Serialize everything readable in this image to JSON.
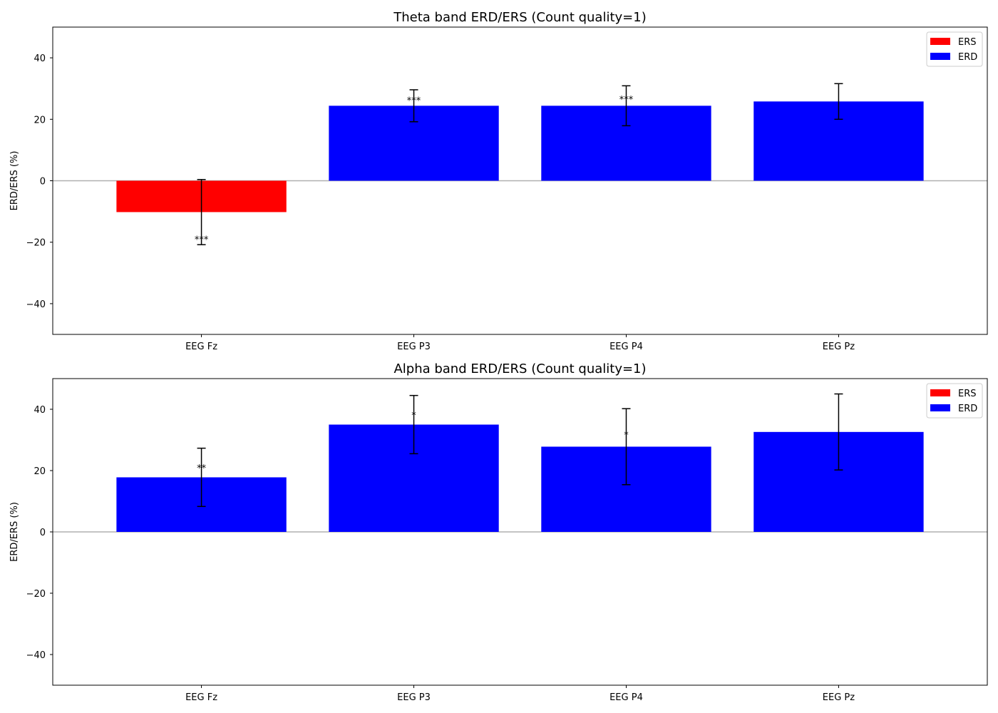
{
  "chart_data": [
    {
      "type": "bar",
      "title": "Theta band ERD/ERS (Count quality=1)",
      "xlabel": "",
      "ylabel": "ERD/ERS (%)",
      "ylim": [
        -50,
        50
      ],
      "yticks": [
        -40,
        -20,
        0,
        20,
        40
      ],
      "categories": [
        "EEG Fz",
        "EEG P3",
        "EEG P4",
        "EEG Pz"
      ],
      "values": [
        -10.2,
        24.4,
        24.4,
        25.8
      ],
      "errors": [
        10.6,
        5.2,
        6.5,
        5.8
      ],
      "significance": [
        "***",
        "***",
        "***",
        ""
      ],
      "bar_types": [
        "ERS",
        "ERD",
        "ERD",
        "ERD"
      ],
      "legend": [
        {
          "label": "ERS",
          "color": "#ff0000"
        },
        {
          "label": "ERD",
          "color": "#0000ff"
        }
      ],
      "legend_position": "top-right",
      "grid": false
    },
    {
      "type": "bar",
      "title": "Alpha band ERD/ERS (Count quality=1)",
      "xlabel": "",
      "ylabel": "ERD/ERS (%)",
      "ylim": [
        -50,
        50
      ],
      "yticks": [
        -40,
        -20,
        0,
        20,
        40
      ],
      "categories": [
        "EEG Fz",
        "EEG P3",
        "EEG P4",
        "EEG Pz"
      ],
      "values": [
        17.8,
        35.0,
        27.8,
        32.6
      ],
      "errors": [
        9.5,
        9.5,
        12.4,
        12.4
      ],
      "significance": [
        "**",
        "*",
        "*",
        ""
      ],
      "bar_types": [
        "ERD",
        "ERD",
        "ERD",
        "ERD"
      ],
      "legend": [
        {
          "label": "ERS",
          "color": "#ff0000"
        },
        {
          "label": "ERD",
          "color": "#0000ff"
        }
      ],
      "legend_position": "top-right",
      "grid": false
    }
  ]
}
